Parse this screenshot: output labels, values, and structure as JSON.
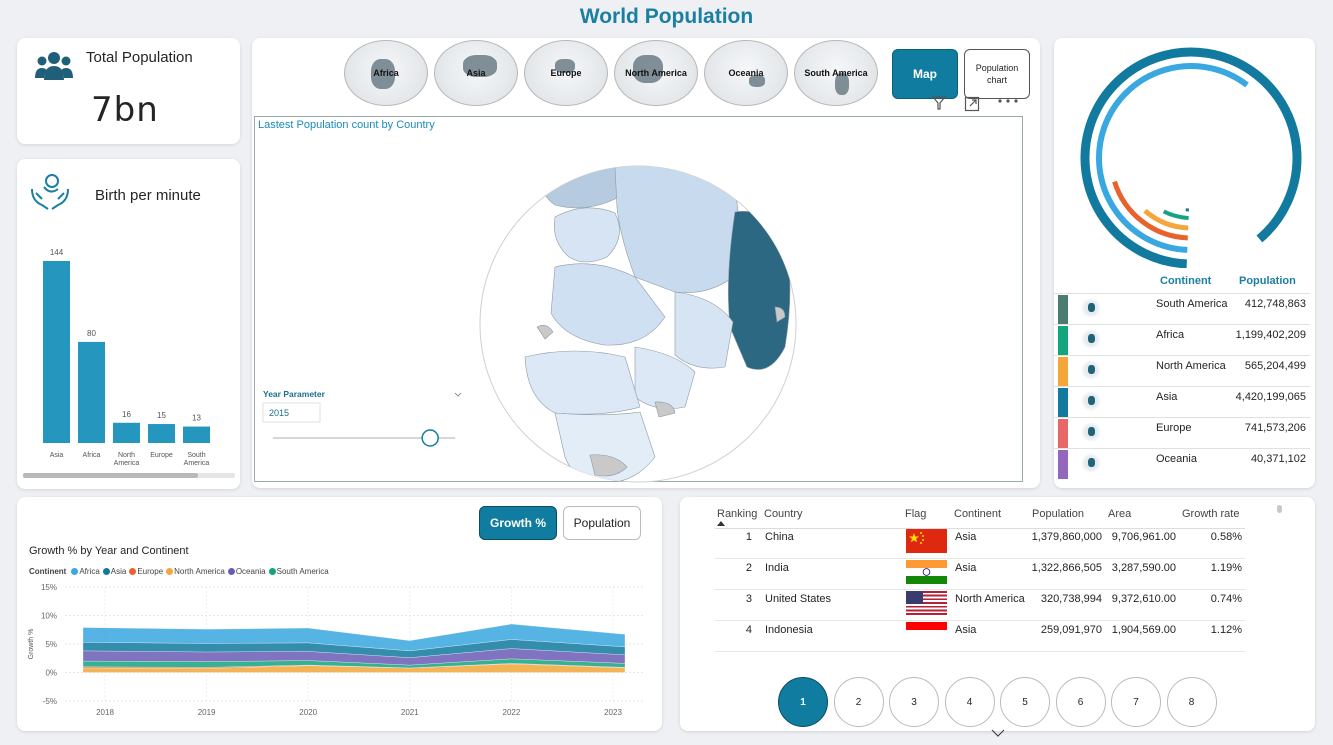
{
  "title": "World Population",
  "kpi_total": {
    "label": "Total Population",
    "value": "7bn",
    "icon": "people-icon"
  },
  "kpi_birth": {
    "label": "Birth per minute",
    "icon": "baby-hands-icon"
  },
  "birth_chart": {
    "type": "bar",
    "categories": [
      "Asia",
      "Africa",
      "North America",
      "Europe",
      "South America"
    ],
    "category_lines": [
      [
        "Asia"
      ],
      [
        "Africa"
      ],
      [
        "North",
        "America"
      ],
      [
        "Europe"
      ],
      [
        "South",
        "America"
      ]
    ],
    "values": [
      144,
      80,
      16,
      15,
      13
    ],
    "labels": [
      "144",
      "80",
      "16",
      "15",
      "13"
    ],
    "color": "#2596be"
  },
  "continent_buttons": [
    "Africa",
    "Asia",
    "Europe",
    "North America",
    "Oceania",
    "South America"
  ],
  "view_buttons": {
    "map": "Map",
    "population_chart": "Population chart"
  },
  "map": {
    "title": "Lastest Population count by Country",
    "year_parameter_label": "Year Parameter",
    "year_value": "2015",
    "slider_value": 0.93
  },
  "donut": {
    "colors": [
      "#117a9e",
      "#39a7e0",
      "#e8622c",
      "#f4a63a",
      "#12a57e",
      "#1a7a8f"
    ],
    "values": [
      0.9,
      0.61,
      0.2,
      0.11,
      0.07,
      0.01
    ]
  },
  "continent_table": {
    "headers": {
      "continent": "Continent",
      "population": "Population"
    },
    "rows": [
      {
        "name": "South America",
        "population": "412,748,863",
        "color": "#4a7c70"
      },
      {
        "name": "Africa",
        "population": "1,199,402,209",
        "color": "#12a57e"
      },
      {
        "name": "North America",
        "population": "565,204,499",
        "color": "#f4a63a"
      },
      {
        "name": "Asia",
        "population": "4,420,199,065",
        "color": "#117a9e"
      },
      {
        "name": "Europe",
        "population": "741,573,206",
        "color": "#e86868"
      },
      {
        "name": "Oceania",
        "population": "40,371,102",
        "color": "#9467bd"
      }
    ]
  },
  "growth_toggle": {
    "growth": "Growth %",
    "population": "Population"
  },
  "growth_chart": {
    "type": "area",
    "title": "Growth % by Year and Continent",
    "legend_title": "Continent",
    "ylabel": "Growth %",
    "ylim": [
      -5,
      15
    ],
    "y_ticks": [
      "15%",
      "10%",
      "5%",
      "0%",
      "-5%"
    ],
    "y_tick_values": [
      15,
      10,
      5,
      0,
      -5
    ],
    "x": [
      "2018",
      "2019",
      "2020",
      "2021",
      "2022",
      "2023"
    ],
    "series": [
      {
        "name": "Africa",
        "color": "#39a7e0",
        "values": [
          2.6,
          2.5,
          2.6,
          1.8,
          2.7,
          2.2
        ]
      },
      {
        "name": "Asia",
        "color": "#117a9e",
        "values": [
          1.5,
          1.5,
          1.5,
          1.2,
          1.6,
          1.4
        ]
      },
      {
        "name": "Europe",
        "color": "#e8622c",
        "values": [
          0.2,
          0.2,
          0.1,
          0.0,
          0.1,
          0.1
        ]
      },
      {
        "name": "North America",
        "color": "#f4a63a",
        "values": [
          0.8,
          0.7,
          1.2,
          0.8,
          1.5,
          0.8
        ]
      },
      {
        "name": "Oceania",
        "color": "#6b5bb5",
        "values": [
          1.8,
          1.7,
          1.6,
          1.3,
          1.8,
          1.5
        ]
      },
      {
        "name": "South America",
        "color": "#12a57e",
        "values": [
          1.0,
          1.0,
          0.8,
          0.5,
          0.8,
          0.7
        ]
      }
    ]
  },
  "country_table": {
    "headers": [
      "Ranking",
      "Country",
      "Flag",
      "Continent",
      "Population",
      "Area",
      "Growth rate"
    ],
    "rows": [
      {
        "rank": "1",
        "country": "China",
        "continent": "Asia",
        "population": "1,379,860,000",
        "area": "9,706,961.00",
        "growth": "0.58%",
        "flag": "china"
      },
      {
        "rank": "2",
        "country": "India",
        "continent": "Asia",
        "population": "1,322,866,505",
        "area": "3,287,590.00",
        "growth": "1.19%",
        "flag": "india"
      },
      {
        "rank": "3",
        "country": "United States",
        "continent": "North America",
        "population": "320,738,994",
        "area": "9,372,610.00",
        "growth": "0.74%",
        "flag": "usa"
      },
      {
        "rank": "4",
        "country": "Indonesia",
        "continent": "Asia",
        "population": "259,091,970",
        "area": "1,904,569.00",
        "growth": "1.12%",
        "flag": "indonesia"
      }
    ]
  },
  "pagination": [
    "1",
    "2",
    "3",
    "4",
    "5",
    "6",
    "7",
    "8"
  ],
  "active_page": "1"
}
